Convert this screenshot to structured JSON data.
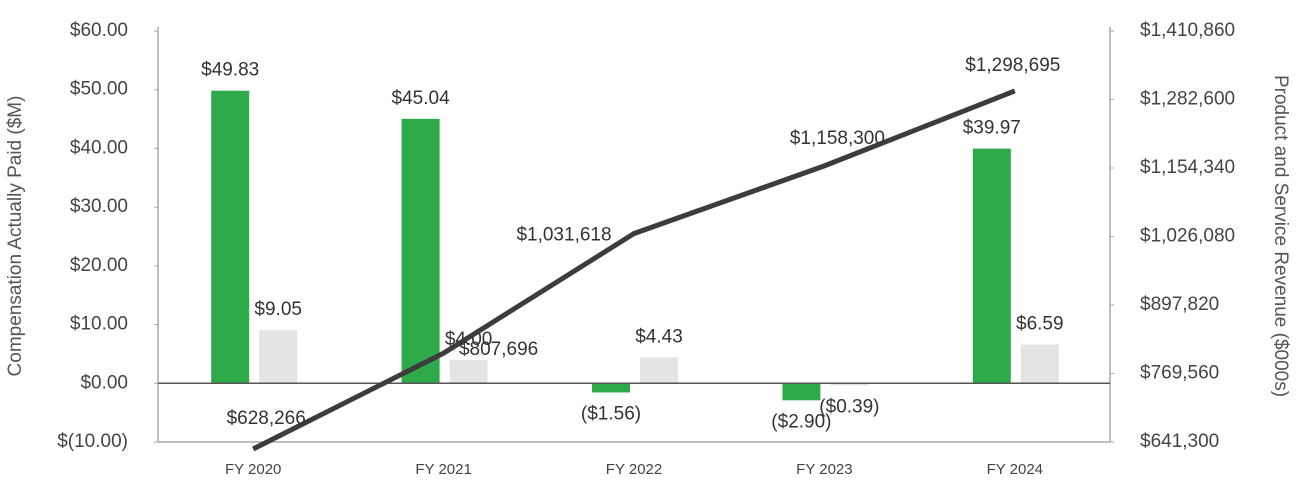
{
  "chart_data": {
    "type": "bar_line",
    "y_label": "Compensation Actually Paid ($M)",
    "y2_label": "Product and Service Revenue ($000s)",
    "categories": [
      "FY 2020",
      "FY 2021",
      "FY 2022",
      "FY 2023",
      "FY 2024"
    ],
    "ylim": [
      -10,
      60
    ],
    "yticks": [
      {
        "value": -10,
        "label": "$(10.00)"
      },
      {
        "value": 0,
        "label": "$0.00"
      },
      {
        "value": 10,
        "label": "$10.00"
      },
      {
        "value": 20,
        "label": "$20.00"
      },
      {
        "value": 30,
        "label": "$30.00"
      },
      {
        "value": 40,
        "label": "$40.00"
      },
      {
        "value": 50,
        "label": "$50.00"
      },
      {
        "value": 60,
        "label": "$60.00"
      }
    ],
    "y2lim": [
      641300,
      1410860
    ],
    "y2ticks": [
      {
        "value": 641300,
        "label": "$641,300"
      },
      {
        "value": 769560,
        "label": "$769,560"
      },
      {
        "value": 897820,
        "label": "$897,820"
      },
      {
        "value": 1026080,
        "label": "$1,026,080"
      },
      {
        "value": 1154340,
        "label": "$1,154,340"
      },
      {
        "value": 1282600,
        "label": "$1,282,600"
      },
      {
        "value": 1410860,
        "label": "$1,410,860"
      }
    ],
    "series": [
      {
        "type": "bar",
        "color": "#2eaa4a",
        "values": [
          49.83,
          45.04,
          -1.56,
          -2.9,
          39.97
        ],
        "value_labels": [
          "$49.83",
          "$45.04",
          "($1.56)",
          "($2.90)",
          "$39.97"
        ]
      },
      {
        "type": "bar",
        "color": "#e4e4e6",
        "values": [
          9.05,
          4.0,
          4.43,
          -0.39,
          6.59
        ],
        "value_labels": [
          "$9.05",
          "$4.00",
          "$4.43",
          "($0.39)",
          "$6.59"
        ]
      },
      {
        "type": "line",
        "axis": "y2",
        "color": "#3c3c3c",
        "values": [
          628266,
          807696,
          1031618,
          1158300,
          1298695
        ],
        "value_labels": [
          "$628,266",
          "$807,696",
          "$1,031,618",
          "$1,158,300",
          "$1,298,695"
        ]
      }
    ]
  }
}
